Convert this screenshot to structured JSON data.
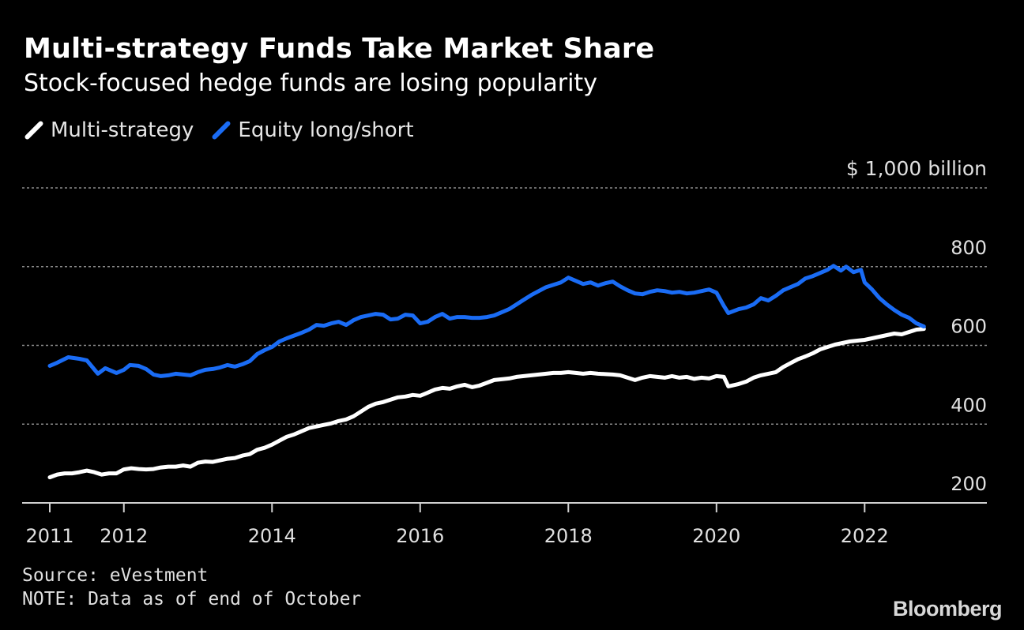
{
  "chart_data": {
    "type": "line",
    "title": "Multi-strategy Funds Take Market Share",
    "subtitle": "Stock-focused hedge funds are losing popularity",
    "unit_label": "$ 1,000 billion",
    "yticks": [
      200,
      400,
      600,
      800
    ],
    "ylim": [
      200,
      1000
    ],
    "xticks": [
      "2011",
      "2012",
      "2014",
      "2016",
      "2018",
      "2020",
      "2022"
    ],
    "xlim": [
      2011.0,
      2023.65
    ],
    "grid": true,
    "legend_position": "top-left",
    "series": [
      {
        "name": "Multi-strategy",
        "color": "#ffffff",
        "points": [
          [
            2011.0,
            265
          ],
          [
            2011.1,
            272
          ],
          [
            2011.2,
            275
          ],
          [
            2011.3,
            275
          ],
          [
            2011.4,
            278
          ],
          [
            2011.5,
            282
          ],
          [
            2011.6,
            278
          ],
          [
            2011.7,
            272
          ],
          [
            2011.8,
            275
          ],
          [
            2011.9,
            275
          ],
          [
            2012.0,
            285
          ],
          [
            2012.1,
            288
          ],
          [
            2012.2,
            286
          ],
          [
            2012.3,
            285
          ],
          [
            2012.4,
            286
          ],
          [
            2012.5,
            290
          ],
          [
            2012.6,
            292
          ],
          [
            2012.7,
            292
          ],
          [
            2012.8,
            295
          ],
          [
            2012.9,
            292
          ],
          [
            2013.0,
            302
          ],
          [
            2013.1,
            305
          ],
          [
            2013.2,
            304
          ],
          [
            2013.3,
            308
          ],
          [
            2013.4,
            312
          ],
          [
            2013.5,
            314
          ],
          [
            2013.6,
            320
          ],
          [
            2013.7,
            324
          ],
          [
            2013.8,
            335
          ],
          [
            2013.9,
            340
          ],
          [
            2014.0,
            348
          ],
          [
            2014.1,
            358
          ],
          [
            2014.2,
            368
          ],
          [
            2014.3,
            374
          ],
          [
            2014.4,
            382
          ],
          [
            2014.5,
            390
          ],
          [
            2014.6,
            394
          ],
          [
            2014.7,
            398
          ],
          [
            2014.8,
            402
          ],
          [
            2014.9,
            408
          ],
          [
            2015.0,
            412
          ],
          [
            2015.1,
            420
          ],
          [
            2015.2,
            432
          ],
          [
            2015.3,
            444
          ],
          [
            2015.4,
            452
          ],
          [
            2015.5,
            456
          ],
          [
            2015.6,
            462
          ],
          [
            2015.7,
            468
          ],
          [
            2015.8,
            470
          ],
          [
            2015.9,
            474
          ],
          [
            2016.0,
            472
          ],
          [
            2016.1,
            480
          ],
          [
            2016.2,
            488
          ],
          [
            2016.3,
            492
          ],
          [
            2016.4,
            490
          ],
          [
            2016.5,
            496
          ],
          [
            2016.6,
            500
          ],
          [
            2016.7,
            494
          ],
          [
            2016.8,
            498
          ],
          [
            2016.9,
            505
          ],
          [
            2017.0,
            512
          ],
          [
            2017.1,
            514
          ],
          [
            2017.2,
            516
          ],
          [
            2017.3,
            520
          ],
          [
            2017.4,
            522
          ],
          [
            2017.5,
            524
          ],
          [
            2017.6,
            526
          ],
          [
            2017.7,
            528
          ],
          [
            2017.8,
            530
          ],
          [
            2017.9,
            530
          ],
          [
            2018.0,
            532
          ],
          [
            2018.1,
            530
          ],
          [
            2018.2,
            528
          ],
          [
            2018.3,
            530
          ],
          [
            2018.4,
            528
          ],
          [
            2018.5,
            527
          ],
          [
            2018.6,
            526
          ],
          [
            2018.7,
            524
          ],
          [
            2018.8,
            518
          ],
          [
            2018.9,
            512
          ],
          [
            2019.0,
            518
          ],
          [
            2019.1,
            522
          ],
          [
            2019.2,
            520
          ],
          [
            2019.3,
            518
          ],
          [
            2019.4,
            522
          ],
          [
            2019.5,
            518
          ],
          [
            2019.6,
            520
          ],
          [
            2019.7,
            515
          ],
          [
            2019.8,
            518
          ],
          [
            2019.9,
            516
          ],
          [
            2020.0,
            522
          ],
          [
            2020.1,
            520
          ],
          [
            2020.16,
            496
          ],
          [
            2020.3,
            502
          ],
          [
            2020.4,
            508
          ],
          [
            2020.5,
            518
          ],
          [
            2020.6,
            524
          ],
          [
            2020.7,
            528
          ],
          [
            2020.8,
            532
          ],
          [
            2020.9,
            545
          ],
          [
            2021.0,
            555
          ],
          [
            2021.1,
            565
          ],
          [
            2021.2,
            572
          ],
          [
            2021.3,
            580
          ],
          [
            2021.4,
            590
          ],
          [
            2021.5,
            596
          ],
          [
            2021.6,
            602
          ],
          [
            2021.7,
            606
          ],
          [
            2021.8,
            610
          ],
          [
            2021.9,
            612
          ],
          [
            2022.0,
            614
          ],
          [
            2022.1,
            618
          ],
          [
            2022.2,
            622
          ],
          [
            2022.3,
            626
          ],
          [
            2022.4,
            630
          ],
          [
            2022.5,
            628
          ],
          [
            2022.6,
            634
          ],
          [
            2022.7,
            640
          ],
          [
            2022.8,
            642
          ]
        ]
      },
      {
        "name": "Equity long/short",
        "color": "#1a6cf5",
        "points": [
          [
            2011.0,
            548
          ],
          [
            2011.1,
            556
          ],
          [
            2011.25,
            570
          ],
          [
            2011.4,
            566
          ],
          [
            2011.5,
            562
          ],
          [
            2011.65,
            528
          ],
          [
            2011.75,
            542
          ],
          [
            2011.9,
            530
          ],
          [
            2012.0,
            538
          ],
          [
            2012.08,
            550
          ],
          [
            2012.2,
            548
          ],
          [
            2012.3,
            540
          ],
          [
            2012.4,
            526
          ],
          [
            2012.5,
            522
          ],
          [
            2012.6,
            524
          ],
          [
            2012.7,
            528
          ],
          [
            2012.8,
            526
          ],
          [
            2012.9,
            524
          ],
          [
            2013.0,
            532
          ],
          [
            2013.1,
            538
          ],
          [
            2013.2,
            540
          ],
          [
            2013.3,
            544
          ],
          [
            2013.4,
            550
          ],
          [
            2013.5,
            546
          ],
          [
            2013.6,
            552
          ],
          [
            2013.7,
            560
          ],
          [
            2013.8,
            578
          ],
          [
            2013.9,
            588
          ],
          [
            2014.0,
            596
          ],
          [
            2014.1,
            610
          ],
          [
            2014.2,
            618
          ],
          [
            2014.3,
            625
          ],
          [
            2014.4,
            632
          ],
          [
            2014.5,
            640
          ],
          [
            2014.6,
            652
          ],
          [
            2014.7,
            650
          ],
          [
            2014.8,
            656
          ],
          [
            2014.9,
            660
          ],
          [
            2015.0,
            652
          ],
          [
            2015.1,
            664
          ],
          [
            2015.2,
            672
          ],
          [
            2015.3,
            676
          ],
          [
            2015.4,
            680
          ],
          [
            2015.5,
            678
          ],
          [
            2015.6,
            666
          ],
          [
            2015.7,
            668
          ],
          [
            2015.8,
            678
          ],
          [
            2015.9,
            676
          ],
          [
            2016.0,
            656
          ],
          [
            2016.1,
            660
          ],
          [
            2016.2,
            672
          ],
          [
            2016.3,
            680
          ],
          [
            2016.4,
            668
          ],
          [
            2016.5,
            672
          ],
          [
            2016.6,
            672
          ],
          [
            2016.7,
            670
          ],
          [
            2016.8,
            670
          ],
          [
            2016.9,
            672
          ],
          [
            2017.0,
            676
          ],
          [
            2017.1,
            684
          ],
          [
            2017.2,
            692
          ],
          [
            2017.3,
            704
          ],
          [
            2017.4,
            716
          ],
          [
            2017.5,
            728
          ],
          [
            2017.6,
            738
          ],
          [
            2017.7,
            748
          ],
          [
            2017.8,
            754
          ],
          [
            2017.9,
            760
          ],
          [
            2018.0,
            772
          ],
          [
            2018.1,
            764
          ],
          [
            2018.2,
            756
          ],
          [
            2018.3,
            760
          ],
          [
            2018.4,
            752
          ],
          [
            2018.5,
            758
          ],
          [
            2018.6,
            762
          ],
          [
            2018.7,
            750
          ],
          [
            2018.8,
            740
          ],
          [
            2018.9,
            732
          ],
          [
            2019.0,
            730
          ],
          [
            2019.1,
            736
          ],
          [
            2019.2,
            740
          ],
          [
            2019.3,
            738
          ],
          [
            2019.4,
            734
          ],
          [
            2019.5,
            736
          ],
          [
            2019.6,
            732
          ],
          [
            2019.7,
            734
          ],
          [
            2019.8,
            738
          ],
          [
            2019.9,
            742
          ],
          [
            2020.0,
            734
          ],
          [
            2020.1,
            700
          ],
          [
            2020.16,
            682
          ],
          [
            2020.3,
            692
          ],
          [
            2020.4,
            696
          ],
          [
            2020.5,
            704
          ],
          [
            2020.6,
            720
          ],
          [
            2020.7,
            714
          ],
          [
            2020.8,
            726
          ],
          [
            2020.9,
            740
          ],
          [
            2021.0,
            748
          ],
          [
            2021.1,
            756
          ],
          [
            2021.2,
            770
          ],
          [
            2021.3,
            776
          ],
          [
            2021.4,
            784
          ],
          [
            2021.5,
            792
          ],
          [
            2021.58,
            802
          ],
          [
            2021.68,
            790
          ],
          [
            2021.75,
            800
          ],
          [
            2021.85,
            786
          ],
          [
            2021.95,
            792
          ],
          [
            2022.0,
            760
          ],
          [
            2022.1,
            742
          ],
          [
            2022.2,
            720
          ],
          [
            2022.3,
            704
          ],
          [
            2022.4,
            690
          ],
          [
            2022.5,
            678
          ],
          [
            2022.6,
            670
          ],
          [
            2022.7,
            656
          ],
          [
            2022.8,
            648
          ]
        ]
      }
    ]
  },
  "footer": {
    "source": "Source: eVestment",
    "note": "NOTE: Data as of end of October",
    "brand": "Bloomberg"
  }
}
